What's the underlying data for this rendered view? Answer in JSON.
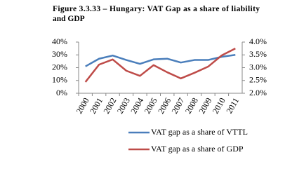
{
  "chart_data": {
    "type": "line",
    "title": "Figure 3.3.33 – Hungary: VAT Gap as a share of liability and GDP",
    "categories": [
      "2000",
      "2001",
      "2002",
      "2003",
      "2004",
      "2005",
      "2006",
      "2007",
      "2008",
      "2009",
      "2010",
      "2011"
    ],
    "series": [
      {
        "name": "VAT gap as a share of VTTL",
        "color": "#4a7ebb",
        "values": [
          21,
          27,
          29.5,
          26,
          23,
          26.5,
          27,
          24,
          26,
          26,
          28.5,
          30
        ]
      },
      {
        "name": "VAT gap as a share of GDP",
        "color": "#be4b48",
        "axis": "y2",
        "values": [
          2.44,
          3.12,
          3.32,
          2.88,
          2.68,
          3.1,
          2.82,
          2.58,
          2.8,
          3.04,
          3.48,
          3.75
        ]
      }
    ],
    "ylim": [
      0,
      40
    ],
    "yticks": [
      {
        "value": 0,
        "label": "0%"
      },
      {
        "value": 10,
        "label": "10%"
      },
      {
        "value": 20,
        "label": "20%"
      },
      {
        "value": 30,
        "label": "30%"
      },
      {
        "value": 40,
        "label": "40%"
      }
    ],
    "y2lim": [
      2.0,
      4.0
    ],
    "y2ticks": [
      {
        "value": 2.0,
        "label": "2.0%"
      },
      {
        "value": 2.5,
        "label": "2.5%"
      },
      {
        "value": 3.0,
        "label": "3.0%"
      },
      {
        "value": 3.5,
        "label": "3.5%"
      },
      {
        "value": 4.0,
        "label": "4.0%"
      }
    ],
    "legend": "bottom"
  }
}
